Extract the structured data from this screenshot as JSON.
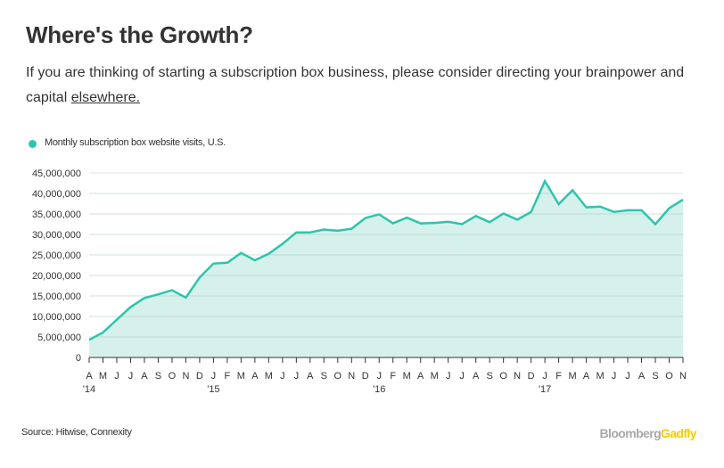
{
  "header": {
    "title": "Where's the Growth?",
    "subtitle": "If you are thinking of starting a subscription box business, please consider directing your brainpower and capital",
    "link_text": "elsewhere."
  },
  "footer": {
    "source": "Source: Hitwise, Connexity",
    "logo_part1": "Bloomberg",
    "logo_part2": "Gadfly"
  },
  "colors": {
    "line": "#2ec4ad",
    "fill": "#d6f1ec",
    "grid": "#e3e3e8",
    "logo_gray": "#a8a8a8",
    "logo_yellow": "#f5cc00"
  },
  "chart_data": {
    "type": "area",
    "title": "Where's the Growth?",
    "legend": [
      {
        "name": "Monthly subscription box website visits, U.S.",
        "color": "#2ec4ad"
      }
    ],
    "legend_placement": "top-left",
    "grid": true,
    "ylim": [
      0,
      45000000
    ],
    "yticks": [
      "0",
      "5,000,000",
      "10,000,000",
      "15,000,000",
      "20,000,000",
      "25,000,000",
      "30,000,000",
      "35,000,000",
      "40,000,000",
      "45,000,000"
    ],
    "xtick_labels": [
      "A",
      "M",
      "J",
      "J",
      "A",
      "S",
      "O",
      "N",
      "D",
      "J",
      "F",
      "M",
      "A",
      "M",
      "J",
      "J",
      "A",
      "S",
      "O",
      "N",
      "D",
      "J",
      "F",
      "M",
      "A",
      "M",
      "J",
      "J",
      "A",
      "S",
      "O",
      "N",
      "D",
      "J",
      "F",
      "M",
      "A",
      "M",
      "J",
      "J",
      "A",
      "S",
      "O",
      "N"
    ],
    "year_labels": [
      {
        "index": 0,
        "label": "'14"
      },
      {
        "index": 9,
        "label": "'15"
      },
      {
        "index": 21,
        "label": "'16"
      },
      {
        "index": 33,
        "label": "'17"
      }
    ],
    "x": [
      "2014-04",
      "2014-05",
      "2014-06",
      "2014-07",
      "2014-08",
      "2014-09",
      "2014-10",
      "2014-11",
      "2014-12",
      "2015-01",
      "2015-02",
      "2015-03",
      "2015-04",
      "2015-05",
      "2015-06",
      "2015-07",
      "2015-08",
      "2015-09",
      "2015-10",
      "2015-11",
      "2015-12",
      "2016-01",
      "2016-02",
      "2016-03",
      "2016-04",
      "2016-05",
      "2016-06",
      "2016-07",
      "2016-08",
      "2016-09",
      "2016-10",
      "2016-11",
      "2016-12",
      "2017-01",
      "2017-02",
      "2017-03",
      "2017-04",
      "2017-05",
      "2017-06",
      "2017-07",
      "2017-08",
      "2017-09",
      "2017-10",
      "2017-11"
    ],
    "series": [
      {
        "name": "Monthly subscription box website visits, U.S.",
        "values": [
          4300000,
          6100000,
          9200000,
          12300000,
          14500000,
          15400000,
          16400000,
          14600000,
          19500000,
          22900000,
          23100000,
          25500000,
          23700000,
          25300000,
          27700000,
          30500000,
          30500000,
          31200000,
          30900000,
          31400000,
          34000000,
          34900000,
          32700000,
          34100000,
          32700000,
          32800000,
          33100000,
          32500000,
          34500000,
          33000000,
          35100000,
          33600000,
          35500000,
          43000000,
          37400000,
          40800000,
          36600000,
          36800000,
          35500000,
          35900000,
          35900000,
          32500000,
          36400000,
          38500000
        ]
      }
    ]
  }
}
